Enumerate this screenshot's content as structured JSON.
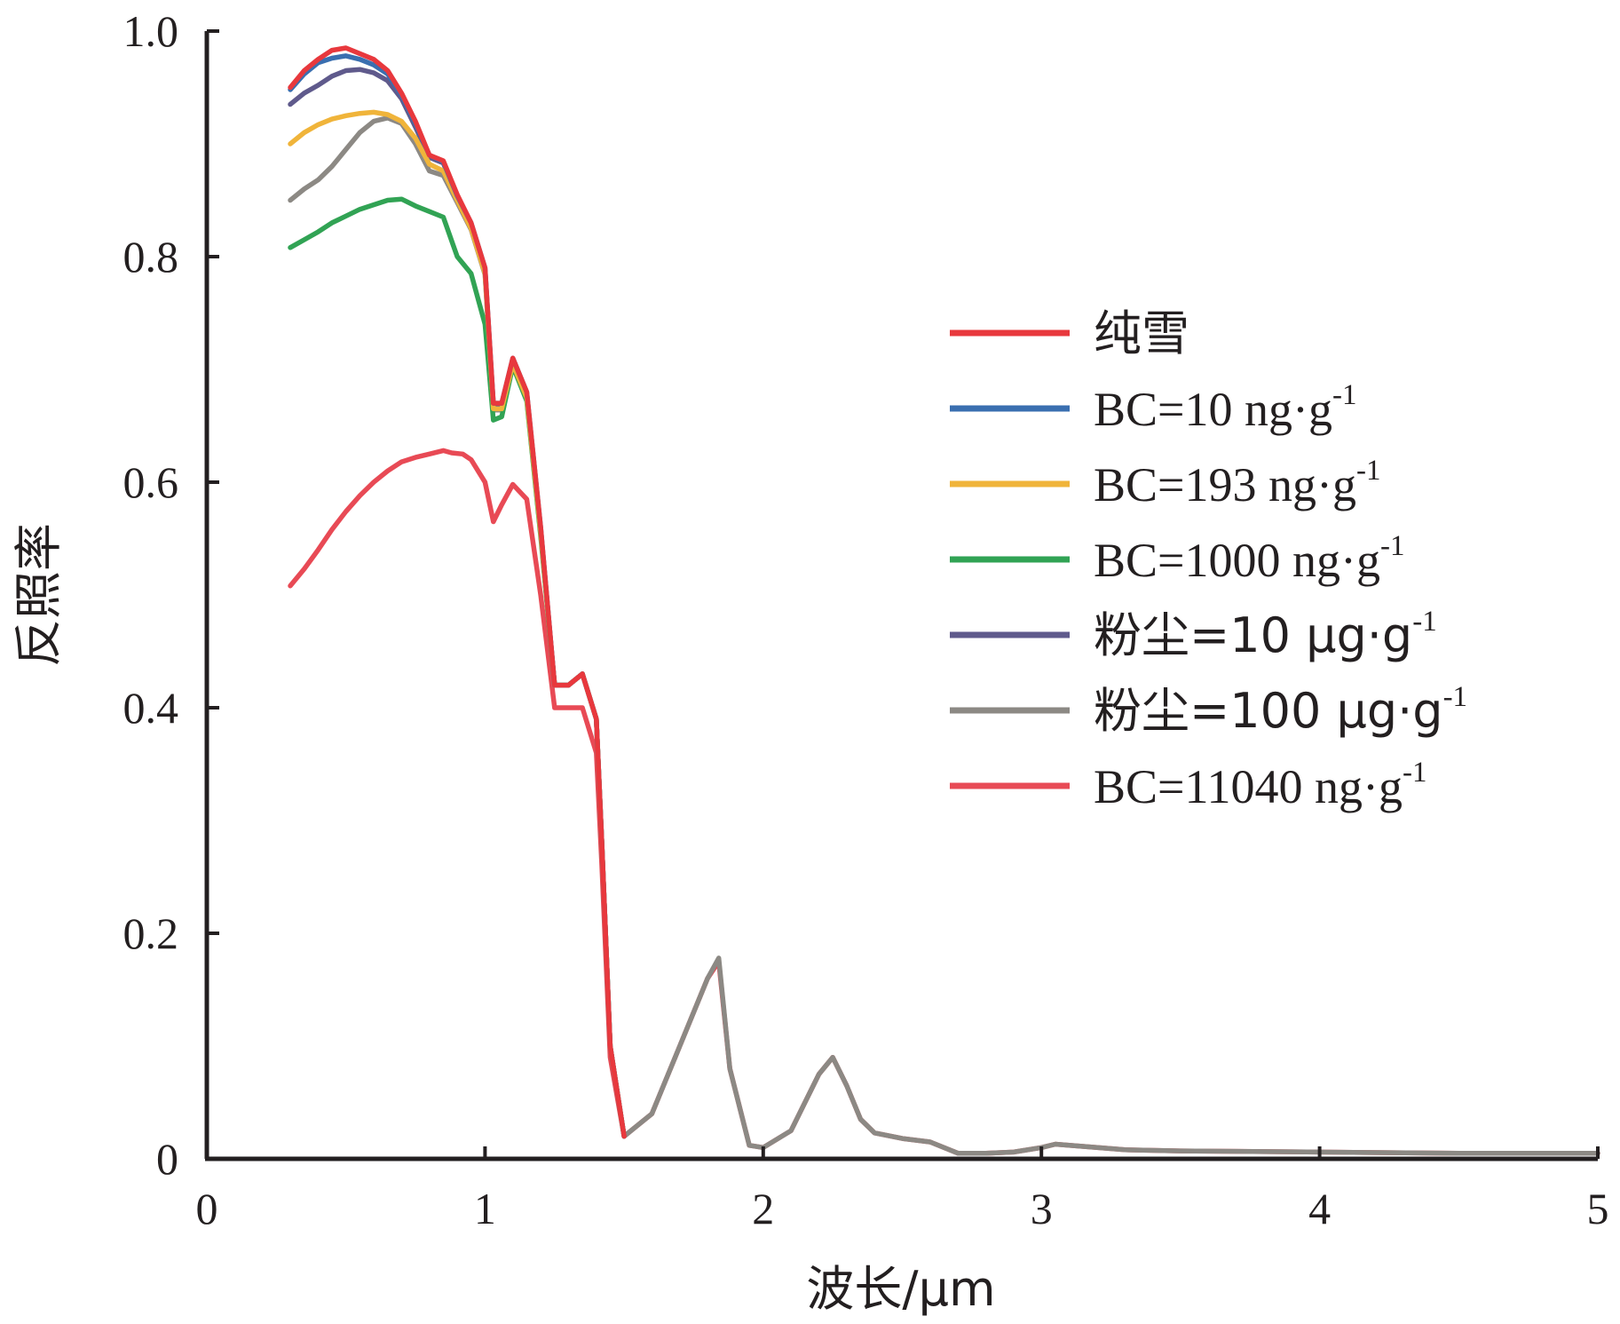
{
  "chart_data": {
    "type": "line",
    "xlabel": "波长/μm",
    "ylabel": "反照率",
    "xlim": [
      0,
      5
    ],
    "ylim": [
      0,
      1.0
    ],
    "x_ticks": [
      "0",
      "1",
      "2",
      "3",
      "4",
      "5"
    ],
    "y_ticks": [
      "0",
      "0.2",
      "0.4",
      "0.6",
      "0.8",
      "1.0"
    ],
    "grid": false,
    "legend_position": "right",
    "series": [
      {
        "name": "纯雪",
        "name_parts": [
          "纯雪",
          ""
        ],
        "color": "#e8383d",
        "x": [
          0.3,
          0.35,
          0.4,
          0.45,
          0.5,
          0.55,
          0.6,
          0.65,
          0.7,
          0.75,
          0.8,
          0.85,
          0.9,
          0.95,
          1.0,
          1.03,
          1.06,
          1.1,
          1.15,
          1.2,
          1.25,
          1.3,
          1.35,
          1.4,
          1.42,
          1.45,
          1.5
        ],
        "y": [
          0.95,
          0.965,
          0.975,
          0.983,
          0.985,
          0.98,
          0.975,
          0.965,
          0.945,
          0.92,
          0.89,
          0.885,
          0.855,
          0.83,
          0.79,
          0.67,
          0.67,
          0.71,
          0.68,
          0.56,
          0.42,
          0.42,
          0.43,
          0.39,
          0.28,
          0.1,
          0.02
        ]
      },
      {
        "name": "BC=10 ng·g-1",
        "name_parts": [
          "BC=10 ng·g",
          "-1"
        ],
        "color": "#3a6fb0",
        "x": [
          0.3,
          0.35,
          0.4,
          0.45,
          0.5,
          0.55,
          0.6,
          0.65,
          0.7,
          0.75,
          0.8,
          0.85,
          0.9,
          0.95,
          1.0,
          1.03,
          1.06,
          1.1,
          1.15,
          1.2,
          1.25,
          1.3,
          1.35,
          1.4,
          1.42,
          1.45,
          1.5
        ],
        "y": [
          0.948,
          0.962,
          0.972,
          0.976,
          0.978,
          0.975,
          0.97,
          0.962,
          0.943,
          0.918,
          0.89,
          0.884,
          0.854,
          0.83,
          0.79,
          0.67,
          0.67,
          0.71,
          0.68,
          0.56,
          0.42,
          0.42,
          0.43,
          0.39,
          0.28,
          0.1,
          0.02
        ]
      },
      {
        "name": "BC=193 ng·g-1",
        "name_parts": [
          "BC=193 ng·g",
          "-1"
        ],
        "color": "#f0b43a",
        "x": [
          0.3,
          0.35,
          0.4,
          0.45,
          0.5,
          0.55,
          0.6,
          0.65,
          0.7,
          0.75,
          0.8,
          0.85,
          0.9,
          0.95,
          1.0,
          1.03,
          1.06,
          1.1,
          1.15,
          1.2,
          1.25,
          1.3,
          1.35,
          1.4,
          1.42,
          1.45,
          1.5
        ],
        "y": [
          0.9,
          0.91,
          0.917,
          0.922,
          0.925,
          0.927,
          0.928,
          0.926,
          0.92,
          0.905,
          0.882,
          0.876,
          0.85,
          0.825,
          0.785,
          0.665,
          0.665,
          0.705,
          0.675,
          0.555,
          0.42,
          0.42,
          0.43,
          0.39,
          0.28,
          0.1,
          0.02
        ]
      },
      {
        "name": "BC=1000 ng·g-1",
        "name_parts": [
          "BC=1000 ng·g",
          "-1"
        ],
        "color": "#31a354",
        "x": [
          0.3,
          0.35,
          0.4,
          0.45,
          0.5,
          0.55,
          0.6,
          0.65,
          0.7,
          0.75,
          0.8,
          0.85,
          0.9,
          0.95,
          1.0,
          1.03,
          1.06,
          1.1,
          1.15,
          1.2,
          1.25,
          1.3,
          1.35,
          1.4,
          1.42,
          1.45,
          1.5
        ],
        "y": [
          0.808,
          0.815,
          0.822,
          0.83,
          0.836,
          0.842,
          0.846,
          0.85,
          0.851,
          0.845,
          0.84,
          0.835,
          0.8,
          0.785,
          0.74,
          0.655,
          0.658,
          0.703,
          0.672,
          0.552,
          0.42,
          0.42,
          0.43,
          0.39,
          0.28,
          0.1,
          0.02
        ]
      },
      {
        "name": "粉尘=10 μg·g-1",
        "name_parts": [
          "粉尘=10 μg·g",
          "-1"
        ],
        "color": "#5f5a8c",
        "x": [
          0.3,
          0.35,
          0.4,
          0.45,
          0.5,
          0.55,
          0.6,
          0.65,
          0.7,
          0.75,
          0.8,
          0.85,
          0.9,
          0.95,
          1.0,
          1.03,
          1.06,
          1.1,
          1.15,
          1.2,
          1.25,
          1.3,
          1.35,
          1.4,
          1.42,
          1.45,
          1.5
        ],
        "y": [
          0.935,
          0.945,
          0.952,
          0.96,
          0.965,
          0.966,
          0.963,
          0.956,
          0.94,
          0.915,
          0.888,
          0.883,
          0.853,
          0.829,
          0.788,
          0.668,
          0.668,
          0.709,
          0.678,
          0.558,
          0.42,
          0.42,
          0.43,
          0.39,
          0.28,
          0.1,
          0.02
        ]
      },
      {
        "name": "粉尘=100 μg·g-1",
        "name_parts": [
          "粉尘=100 μg·g",
          "-1"
        ],
        "color": "#8c8984",
        "x": [
          0.3,
          0.35,
          0.4,
          0.45,
          0.5,
          0.55,
          0.6,
          0.65,
          0.7,
          0.75,
          0.8,
          0.85,
          0.9,
          0.95,
          1.0,
          1.03,
          1.06,
          1.1,
          1.15,
          1.2,
          1.25,
          1.3,
          1.35,
          1.4,
          1.42,
          1.45,
          1.5,
          1.6,
          1.7,
          1.8,
          1.84,
          1.88,
          1.95,
          2.0,
          2.1,
          2.2,
          2.25,
          2.3,
          2.35,
          2.4,
          2.5,
          2.6,
          2.7,
          2.8,
          2.9,
          3.0,
          3.05,
          3.1,
          3.2,
          3.3,
          3.5,
          4.0,
          4.5,
          5.0
        ],
        "y": [
          0.85,
          0.86,
          0.868,
          0.88,
          0.895,
          0.91,
          0.92,
          0.923,
          0.918,
          0.9,
          0.876,
          0.872,
          0.848,
          0.824,
          0.784,
          0.664,
          0.664,
          0.705,
          0.674,
          0.554,
          0.42,
          0.42,
          0.43,
          0.39,
          0.28,
          0.1,
          0.02,
          0.04,
          0.1,
          0.16,
          0.178,
          0.08,
          0.012,
          0.01,
          0.025,
          0.075,
          0.09,
          0.065,
          0.035,
          0.023,
          0.018,
          0.015,
          0.005,
          0.005,
          0.006,
          0.01,
          0.013,
          0.012,
          0.01,
          0.008,
          0.007,
          0.006,
          0.005,
          0.005
        ]
      },
      {
        "name": "BC=11040 ng·g-1",
        "name_parts": [
          "BC=11040 ng·g",
          "-1"
        ],
        "color": "#e84a55",
        "x": [
          0.3,
          0.35,
          0.4,
          0.45,
          0.5,
          0.55,
          0.6,
          0.65,
          0.7,
          0.75,
          0.8,
          0.85,
          0.88,
          0.92,
          0.95,
          1.0,
          1.03,
          1.06,
          1.1,
          1.15,
          1.2,
          1.25,
          1.3,
          1.35,
          1.4,
          1.42,
          1.45,
          1.5,
          1.6,
          1.7,
          1.8,
          1.84,
          1.88,
          1.95,
          2.0,
          2.1,
          2.2,
          2.25,
          2.3,
          2.35,
          2.4,
          2.5,
          2.6,
          2.7,
          2.8,
          2.9,
          3.0,
          3.05,
          3.1,
          3.2,
          3.3,
          3.5,
          4.0,
          4.5,
          5.0
        ],
        "y": [
          0.508,
          0.523,
          0.54,
          0.558,
          0.574,
          0.588,
          0.6,
          0.61,
          0.618,
          0.622,
          0.625,
          0.628,
          0.626,
          0.625,
          0.62,
          0.6,
          0.565,
          0.58,
          0.598,
          0.585,
          0.5,
          0.4,
          0.4,
          0.4,
          0.36,
          0.26,
          0.09,
          0.02,
          0.04,
          0.1,
          0.16,
          0.175,
          0.08,
          0.012,
          0.01,
          0.025,
          0.075,
          0.09,
          0.065,
          0.035,
          0.023,
          0.018,
          0.015,
          0.005,
          0.005,
          0.006,
          0.01,
          0.013,
          0.012,
          0.01,
          0.008,
          0.007,
          0.006,
          0.005,
          0.005
        ]
      }
    ]
  }
}
